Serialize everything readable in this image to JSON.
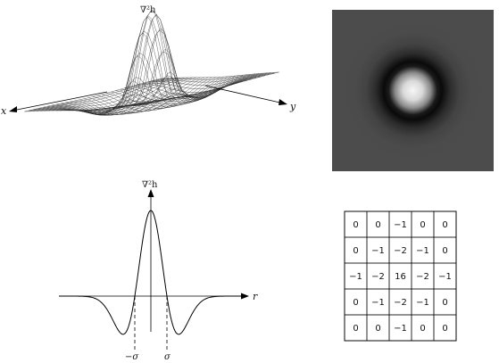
{
  "surface_plot": {
    "title": "∇²h",
    "x_axis_label": "x",
    "y_axis_label": "y"
  },
  "profile_plot": {
    "title": "∇²h",
    "r_axis_label": "r",
    "neg_sigma_label": "−σ",
    "pos_sigma_label": "σ"
  },
  "intensity_image": {
    "background_color": "#4b4b4b",
    "center_color": "#f5f5f5",
    "ring_color": "#000000"
  },
  "laplacian_mask": {
    "rows": [
      [
        "0",
        "0",
        "−1",
        "0",
        "0"
      ],
      [
        "0",
        "−1",
        "−2",
        "−1",
        "0"
      ],
      [
        "−1",
        "−2",
        "16",
        "−2",
        "−1"
      ],
      [
        "0",
        "−1",
        "−2",
        "−1",
        "0"
      ],
      [
        "0",
        "0",
        "−1",
        "0",
        "0"
      ]
    ]
  }
}
